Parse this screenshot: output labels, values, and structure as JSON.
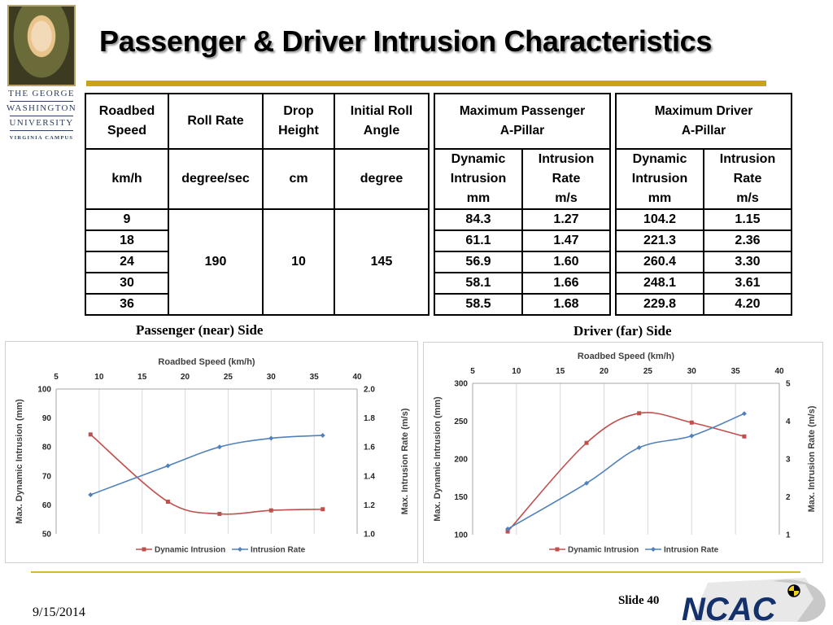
{
  "title": "Passenger & Driver Intrusion Characteristics",
  "logo": {
    "line1": "THE GEORGE",
    "line2": "WASHINGTON",
    "line3": "UNIVERSITY",
    "line4": "VIRGINIA CAMPUS"
  },
  "table": {
    "headers": {
      "roadbed_speed": [
        "Roadbed",
        "Speed"
      ],
      "roll_rate": "Roll Rate",
      "drop_height": [
        "Drop",
        "Height"
      ],
      "initial_roll_angle": [
        "Initial Roll",
        "Angle"
      ],
      "max_passenger": [
        "Maximum Passenger",
        "A-Pillar"
      ],
      "max_driver": [
        "Maximum Driver",
        "A-Pillar"
      ],
      "dynamic_intrusion": [
        "Dynamic",
        "Intrusion"
      ],
      "intrusion_rate": [
        "Intrusion",
        "Rate"
      ]
    },
    "units": {
      "speed": "km/h",
      "roll_rate": "degree/sec",
      "drop_height": "cm",
      "roll_angle": "degree",
      "intrusion": "mm",
      "rate": "m/s"
    },
    "common": {
      "roll_rate": "190",
      "drop_height": "10",
      "roll_angle": "145"
    },
    "rows": [
      {
        "speed": "9",
        "p_intr": "84.3",
        "p_rate": "1.27",
        "d_intr": "104.2",
        "d_rate": "1.15"
      },
      {
        "speed": "18",
        "p_intr": "61.1",
        "p_rate": "1.47",
        "d_intr": "221.3",
        "d_rate": "2.36"
      },
      {
        "speed": "24",
        "p_intr": "56.9",
        "p_rate": "1.60",
        "d_intr": "260.4",
        "d_rate": "3.30"
      },
      {
        "speed": "30",
        "p_intr": "58.1",
        "p_rate": "1.66",
        "d_intr": "248.1",
        "d_rate": "3.61"
      },
      {
        "speed": "36",
        "p_intr": "58.5",
        "p_rate": "1.68",
        "d_intr": "229.8",
        "d_rate": "4.20"
      }
    ]
  },
  "chart_data": [
    {
      "type": "line",
      "caption": "Passenger (near) Side",
      "title": "Roadbed Speed (km/h)",
      "xlabel": "Roadbed Speed (km/h)",
      "ylabel": "Max. Dynamic Intrusion (mm)",
      "y2label": "Max. Intrusion Rate (m/s)",
      "xlim": [
        5,
        40
      ],
      "xticks": [
        5,
        10,
        15,
        20,
        25,
        30,
        35,
        40
      ],
      "ylim": [
        50,
        100
      ],
      "yticks": [
        50,
        60,
        70,
        80,
        90,
        100
      ],
      "y2lim": [
        1.0,
        2.0
      ],
      "y2ticks": [
        "1.0",
        "1.2",
        "1.4",
        "1.6",
        "1.8",
        "2.0"
      ],
      "x": [
        9,
        18,
        24,
        30,
        36
      ],
      "series": [
        {
          "name": "Dynamic Intrusion",
          "axis": "left",
          "color": "#c0504d",
          "marker": "square",
          "values": [
            84.3,
            61.1,
            56.9,
            58.1,
            58.5
          ]
        },
        {
          "name": "Intrusion Rate",
          "axis": "right",
          "color": "#4f81bd",
          "marker": "diamond",
          "values": [
            1.27,
            1.47,
            1.6,
            1.66,
            1.68
          ]
        }
      ],
      "grid": "vertical",
      "legend": "bottom"
    },
    {
      "type": "line",
      "caption": "Driver (far) Side",
      "title": "Roadbed Speed (km/h)",
      "xlabel": "Roadbed Speed (km/h)",
      "ylabel": "Max. Dynamic Intrusion (mm)",
      "y2label": "Max. Intrusion Rate (m/s)",
      "xlim": [
        5,
        40
      ],
      "xticks": [
        5,
        10,
        15,
        20,
        25,
        30,
        35,
        40
      ],
      "ylim": [
        100,
        300
      ],
      "yticks": [
        100,
        150,
        200,
        250,
        300
      ],
      "y2lim": [
        1,
        5
      ],
      "y2ticks": [
        "1",
        "2",
        "3",
        "4",
        "5"
      ],
      "x": [
        9,
        18,
        24,
        30,
        36
      ],
      "series": [
        {
          "name": "Dynamic Intrusion",
          "axis": "left",
          "color": "#c0504d",
          "marker": "square",
          "values": [
            104.2,
            221.3,
            260.4,
            248.1,
            229.8
          ]
        },
        {
          "name": "Intrusion Rate",
          "axis": "right",
          "color": "#4f81bd",
          "marker": "diamond",
          "values": [
            1.15,
            2.36,
            3.3,
            3.61,
            4.2
          ]
        }
      ],
      "grid": "vertical",
      "legend": "bottom"
    }
  ],
  "footer": {
    "date": "9/15/2014",
    "slide": "Slide 40",
    "brand": "NCAC"
  },
  "colors": {
    "gold": "#c9a218",
    "passenger_line": "#c0504d",
    "rate_line": "#4f81bd"
  }
}
